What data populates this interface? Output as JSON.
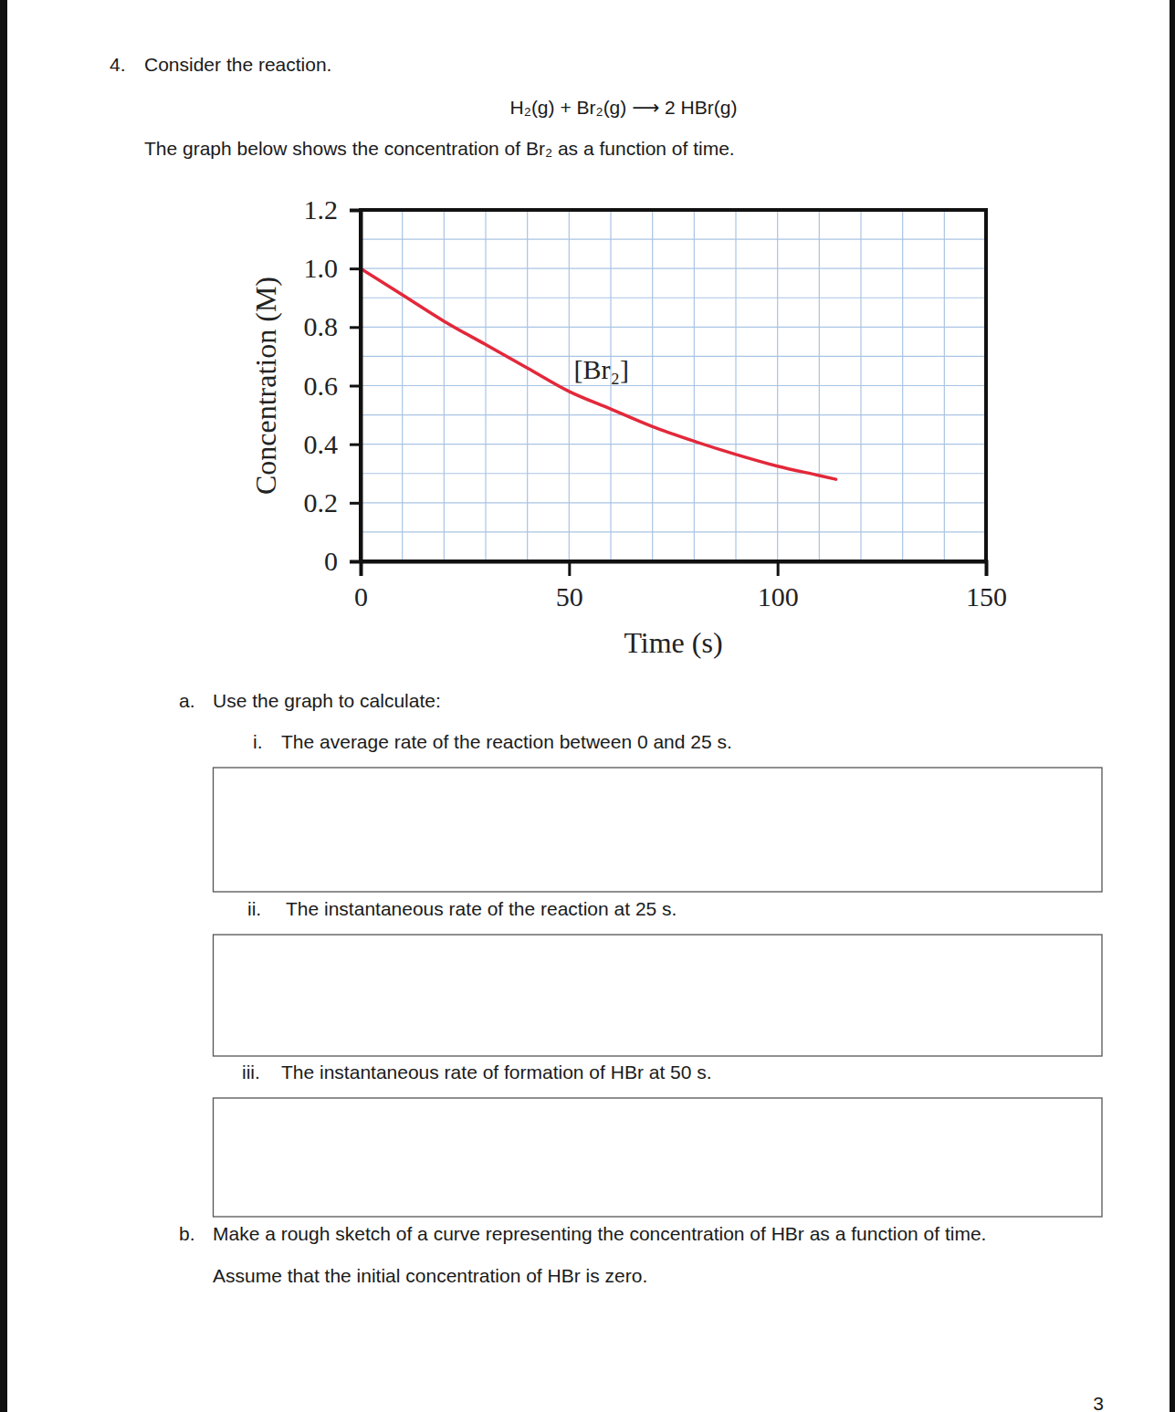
{
  "question": {
    "number": "4.",
    "intro": "Consider the reaction.",
    "equation": "H₂(g) + Br₂(g) ⟶ 2 HBr(g)",
    "graph_text": "The graph below shows the concentration of Br₂ as a function of time."
  },
  "chart_data": {
    "type": "line",
    "x_label": "Time (s)",
    "y_label": "Concentration (M)",
    "x": [
      0,
      10,
      20,
      30,
      40,
      50,
      60,
      70,
      80,
      90,
      100,
      110,
      114
    ],
    "series": [
      {
        "name": "[Br₂]",
        "color": "#e3283a",
        "values": [
          1.0,
          0.91,
          0.82,
          0.74,
          0.66,
          0.58,
          0.52,
          0.46,
          0.41,
          0.365,
          0.325,
          0.293,
          0.28
        ]
      }
    ],
    "xlim": [
      0,
      150
    ],
    "ylim": [
      0,
      1.2
    ],
    "xticks": [
      0,
      50,
      100,
      150
    ],
    "yticks": [
      0,
      0.2,
      0.4,
      0.6,
      0.8,
      {
        "value": 1,
        "label": "1.0"
      },
      1.2
    ],
    "grid": true
  },
  "parts": [
    {
      "label": "a.",
      "text": "Use the graph to calculate:",
      "items": [
        {
          "label": "i.",
          "text": "The average rate of the reaction between 0 and 25 s."
        },
        {
          "label": "ii.",
          "text": "The instantaneous rate of the reaction at 25 s."
        },
        {
          "label": "iii.",
          "text": "The instantaneous rate of formation of HBr at 50 s."
        }
      ]
    },
    {
      "label": "b.",
      "lines": [
        "Make a rough sketch of a curve representing the concentration of HBr as a function of time.",
        "Assume that the initial concentration of HBr is zero."
      ]
    }
  ],
  "page_number": "3"
}
